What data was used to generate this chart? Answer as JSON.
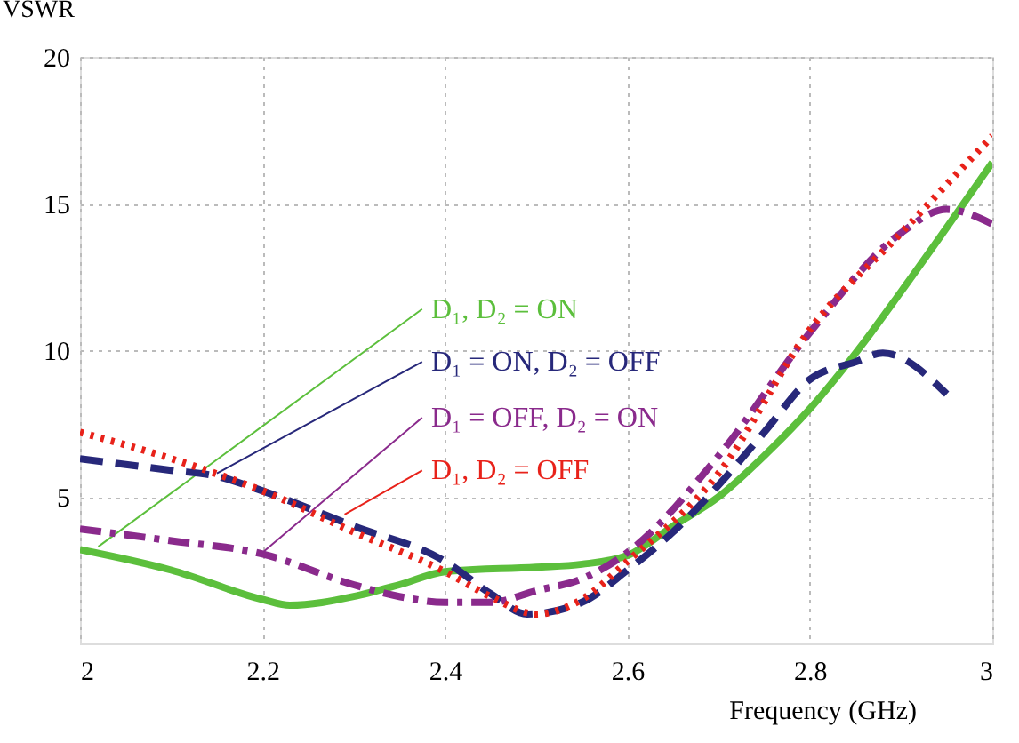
{
  "chart_data": {
    "type": "line",
    "xlabel": "Frequency (GHz)",
    "ylabel": "VSWR",
    "xlim": [
      2,
      3
    ],
    "xticks": [
      2,
      2.2,
      2.4,
      2.6,
      2.8,
      3
    ],
    "ylim": [
      0,
      20
    ],
    "yticks": [
      5,
      10,
      15,
      20
    ],
    "grid": true,
    "series": [
      {
        "name": "D₁, D₂ = ON",
        "color": "#5cbf3c",
        "line_style": "solid",
        "x": [
          2.0,
          2.1,
          2.2,
          2.23,
          2.3,
          2.35,
          2.4,
          2.5,
          2.55,
          2.6,
          2.65,
          2.7,
          2.75,
          2.8,
          2.86,
          2.9,
          3.0
        ],
        "values": [
          3.2,
          2.5,
          1.5,
          1.3,
          1.6,
          2.0,
          2.45,
          2.6,
          2.7,
          3.0,
          4.0,
          5.0,
          6.4,
          8.0,
          10.3,
          12.0,
          16.4
        ]
      },
      {
        "name": "D₁ = ON, D₂ = OFF",
        "color": "#27287a",
        "line_style": "dashed",
        "x": [
          2.0,
          2.1,
          2.15,
          2.2,
          2.3,
          2.4,
          2.45,
          2.49,
          2.55,
          2.6,
          2.65,
          2.7,
          2.75,
          2.8,
          2.85,
          2.88,
          2.95
        ],
        "values": [
          6.3,
          5.9,
          5.7,
          5.2,
          4.0,
          2.8,
          1.7,
          1.0,
          1.4,
          2.5,
          3.8,
          5.4,
          7.2,
          9.0,
          9.6,
          9.9,
          8.5
        ]
      },
      {
        "name": "D₁ = OFF, D₂ = ON",
        "color": "#8a2a8c",
        "line_style": "dashdot",
        "x": [
          2.0,
          2.1,
          2.2,
          2.3,
          2.35,
          2.4,
          2.45,
          2.5,
          2.55,
          2.6,
          2.7,
          2.8,
          2.9,
          2.95,
          3.0
        ],
        "values": [
          3.9,
          3.5,
          3.05,
          2.0,
          1.6,
          1.4,
          1.4,
          1.8,
          2.2,
          3.1,
          6.4,
          10.6,
          14.0,
          14.8,
          14.3
        ]
      },
      {
        "name": "D₁, D₂ = OFF",
        "color": "#e8221a",
        "line_style": "dotted",
        "x": [
          2.0,
          2.1,
          2.2,
          2.3,
          2.4,
          2.45,
          2.5,
          2.55,
          2.6,
          2.7,
          2.8,
          2.9,
          3.0
        ],
        "values": [
          7.2,
          6.3,
          5.2,
          3.8,
          2.45,
          1.6,
          1.0,
          1.5,
          2.8,
          5.8,
          10.7,
          14.0,
          17.3
        ]
      }
    ]
  }
}
